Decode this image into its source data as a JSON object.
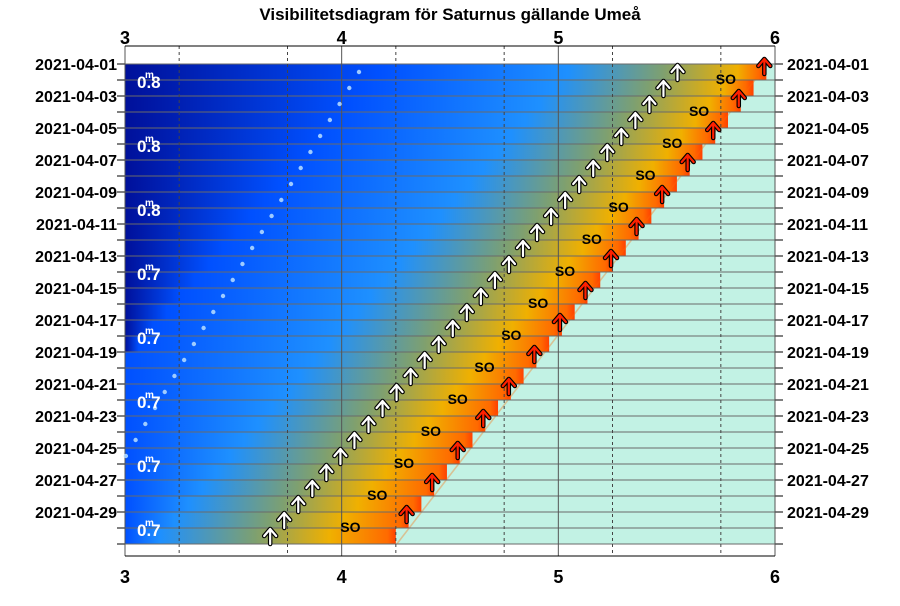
{
  "chart_data": {
    "type": "line",
    "title": "Visibilitetsdiagram för Saturnus gällande Umeå",
    "x_range": [
      3,
      6
    ],
    "x_ticks": [
      "3",
      "4",
      "5",
      "6"
    ],
    "dates": [
      "2021-04-01",
      "2021-04-02",
      "2021-04-03",
      "2021-04-04",
      "2021-04-05",
      "2021-04-06",
      "2021-04-07",
      "2021-04-08",
      "2021-04-09",
      "2021-04-10",
      "2021-04-11",
      "2021-04-12",
      "2021-04-13",
      "2021-04-14",
      "2021-04-15",
      "2021-04-16",
      "2021-04-17",
      "2021-04-18",
      "2021-04-19",
      "2021-04-20",
      "2021-04-21",
      "2021-04-22",
      "2021-04-23",
      "2021-04-24",
      "2021-04-25",
      "2021-04-26",
      "2021-04-27",
      "2021-04-28",
      "2021-04-29",
      "2021-04-30"
    ],
    "date_labels": [
      "2021-04-01",
      "2021-04-03",
      "2021-04-05",
      "2021-04-07",
      "2021-04-09",
      "2021-04-11",
      "2021-04-13",
      "2021-04-15",
      "2021-04-17",
      "2021-04-19",
      "2021-04-21",
      "2021-04-23",
      "2021-04-25",
      "2021-04-27",
      "2021-04-29"
    ],
    "series": [
      {
        "kind": "twilight-dots",
        "x_start": 4.08,
        "x_end": 2.78
      },
      {
        "kind": "planet-rise",
        "x_start": 5.55,
        "x_end": 3.67
      },
      {
        "kind": "sun-rise",
        "x_start": 5.96,
        "x_end": 4.25
      }
    ],
    "so_label": "SO",
    "magnitudes": [
      {
        "date": "2021-04-02",
        "value": "0.8"
      },
      {
        "date": "2021-04-06",
        "value": "0.8"
      },
      {
        "date": "2021-04-10",
        "value": "0.8"
      },
      {
        "date": "2021-04-14",
        "value": "0.7"
      },
      {
        "date": "2021-04-18",
        "value": "0.7"
      },
      {
        "date": "2021-04-22",
        "value": "0.7"
      },
      {
        "date": "2021-04-26",
        "value": "0.7"
      },
      {
        "date": "2021-04-30",
        "value": "0.7"
      }
    ],
    "magnitude_unit": "m",
    "colors": {
      "night": "#00109a",
      "blue": "#0050ff",
      "twilight_mid": "#7ea070",
      "dawn": "#f0b000",
      "sunrise": "#ff6a00",
      "day": "#c2f2e4",
      "planet_arrow": "#ffffff",
      "sun_arrow": "#ff2000",
      "dots": "#b0d8ff"
    }
  }
}
